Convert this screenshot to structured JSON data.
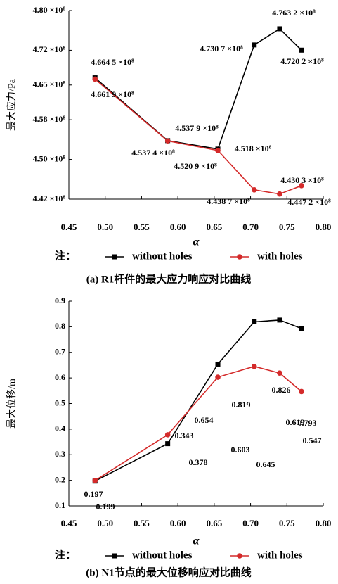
{
  "chart_data": [
    {
      "type": "line",
      "caption": "(a) R1杆件的最大应力响应对比曲线",
      "xlabel": "α",
      "ylabel": "最大应力/Pa",
      "legend_note": "注：",
      "x": [
        0.486,
        0.586,
        0.655,
        0.705,
        0.74,
        0.77
      ],
      "xlim": [
        0.45,
        0.8
      ],
      "xticks": [
        {
          "value": 0.45,
          "label": "0.45"
        },
        {
          "value": 0.5,
          "label": "0.50"
        },
        {
          "value": 0.55,
          "label": "0.55"
        },
        {
          "value": 0.6,
          "label": "0.60"
        },
        {
          "value": 0.65,
          "label": "0.65"
        },
        {
          "value": 0.7,
          "label": "0.70"
        },
        {
          "value": 0.75,
          "label": "0.75"
        },
        {
          "value": 0.8,
          "label": "0.80"
        }
      ],
      "ylim": [
        442000000,
        480000000
      ],
      "yticks": [
        {
          "value": 442000000,
          "label": "4.42 ×10⁸"
        },
        {
          "value": 450000000,
          "label": "4.50 ×10⁸"
        },
        {
          "value": 458000000,
          "label": "4.58 ×10⁸"
        },
        {
          "value": 465000000,
          "label": "4.65 ×10⁸"
        },
        {
          "value": 472000000,
          "label": "4.72 ×10⁸"
        },
        {
          "value": 480000000,
          "label": "4.80 ×10⁸"
        }
      ],
      "series": [
        {
          "name": "without holes",
          "color": "#000000",
          "marker": "square",
          "values": [
            466450000,
            453790000,
            452090000,
            473070000,
            476320000,
            472020000
          ],
          "value_labels": [
            "4.664 5 ×10⁸",
            "4.537 9 ×10⁸",
            "4.520 9 ×10⁸",
            "4.730 7 ×10⁸",
            "4.763 2 ×10⁸",
            "4.720 2 ×10⁸"
          ]
        },
        {
          "name": "with holes",
          "color": "#d42a2a",
          "marker": "circle",
          "values": [
            466190000,
            453740000,
            451800000,
            443870000,
            443030000,
            444720000
          ],
          "value_labels": [
            "4.661 9 ×10⁸",
            "4.537 4 ×10⁸",
            "4.518 ×10⁸",
            "4.438 7 ×10⁸",
            "4.430 3 ×10⁸",
            "4.447 2 ×10⁸"
          ]
        }
      ]
    },
    {
      "type": "line",
      "caption": "(b) N1节点的最大位移响应对比曲线",
      "xlabel": "α",
      "ylabel": "最大位移/m",
      "legend_note": "注：",
      "x": [
        0.486,
        0.586,
        0.655,
        0.705,
        0.74,
        0.77
      ],
      "xlim": [
        0.45,
        0.8
      ],
      "xticks": [
        {
          "value": 0.45,
          "label": "0.45"
        },
        {
          "value": 0.5,
          "label": "0.50"
        },
        {
          "value": 0.55,
          "label": "0.55"
        },
        {
          "value": 0.6,
          "label": "0.60"
        },
        {
          "value": 0.65,
          "label": "0.65"
        },
        {
          "value": 0.7,
          "label": "0.70"
        },
        {
          "value": 0.75,
          "label": "0.75"
        },
        {
          "value": 0.8,
          "label": "0.80"
        }
      ],
      "ylim": [
        0.1,
        0.9
      ],
      "yticks": [
        0.1,
        0.2,
        0.3,
        0.4,
        0.5,
        0.6,
        0.7,
        0.8,
        0.9
      ],
      "series": [
        {
          "name": "without holes",
          "color": "#000000",
          "marker": "square",
          "values": [
            0.197,
            0.343,
            0.654,
            0.819,
            0.826,
            0.793
          ]
        },
        {
          "name": "with holes",
          "color": "#d42a2a",
          "marker": "circle",
          "values": [
            0.199,
            0.378,
            0.603,
            0.645,
            0.619,
            0.547
          ]
        }
      ]
    }
  ]
}
